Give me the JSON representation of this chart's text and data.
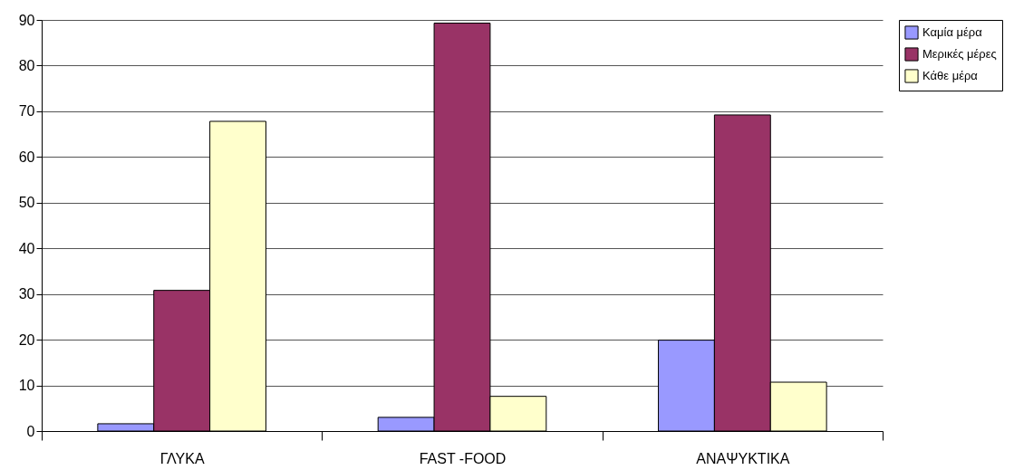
{
  "chart_data": {
    "type": "bar",
    "categories": [
      "ΓΛΥΚΑ",
      "FAST -FOOD",
      "ΑΝΑΨΥΚΤΙΚΑ"
    ],
    "series": [
      {
        "name": "Καμία μέρα",
        "color": "#9999ff",
        "values": [
          1.6,
          3.0,
          19.9
        ]
      },
      {
        "name": "Μερικές μέρες",
        "color": "#993366",
        "values": [
          30.8,
          89.3,
          69.2
        ]
      },
      {
        "name": "Κάθε μέρα",
        "color": "#ffffcc",
        "values": [
          67.8,
          7.6,
          10.7
        ]
      }
    ],
    "ylim": [
      0,
      90
    ],
    "yticks": [
      0,
      10,
      20,
      30,
      40,
      50,
      60,
      70,
      80,
      90
    ],
    "grid": "y",
    "legend": "right"
  }
}
